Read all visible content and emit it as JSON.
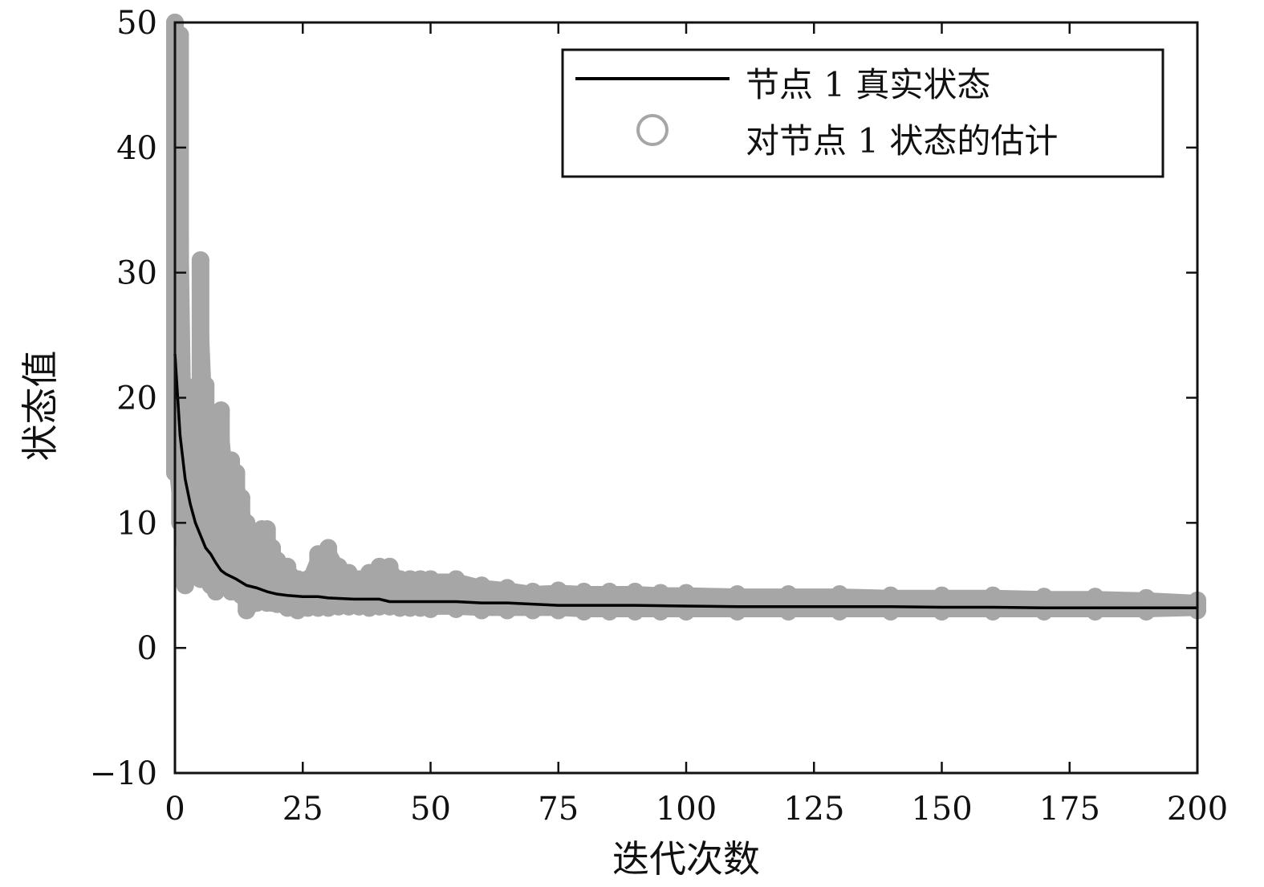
{
  "chart_data": {
    "type": "line",
    "title": "",
    "xlabel": "迭代次数",
    "ylabel": "状态值",
    "xlim": [
      0,
      200
    ],
    "ylim": [
      -10,
      50
    ],
    "x_ticks": [
      "0",
      "25",
      "50",
      "75",
      "100",
      "125",
      "150",
      "175",
      "200"
    ],
    "y_ticks": [
      "−10",
      "0",
      "10",
      "20",
      "30",
      "40",
      "50"
    ],
    "grid": false,
    "legend_position": "top-right",
    "colors": {
      "true_state": "#000000",
      "estimate": "#a6a6a6"
    },
    "series": [
      {
        "name": "节点 1 真实状态",
        "style": "line",
        "x": [
          0,
          1,
          2,
          3,
          4,
          5,
          6,
          7,
          8,
          9,
          10,
          12,
          14,
          16,
          18,
          20,
          22,
          25,
          28,
          30,
          35,
          40,
          42,
          45,
          50,
          55,
          60,
          65,
          70,
          75,
          80,
          90,
          100,
          110,
          120,
          130,
          140,
          150,
          160,
          170,
          180,
          190,
          200
        ],
        "y": [
          23.5,
          17,
          13.5,
          11.5,
          10,
          9,
          8,
          7.5,
          6.8,
          6.2,
          5.9,
          5.5,
          5.0,
          4.8,
          4.5,
          4.3,
          4.2,
          4.1,
          4.1,
          4.0,
          3.9,
          3.9,
          3.7,
          3.7,
          3.7,
          3.7,
          3.6,
          3.6,
          3.5,
          3.4,
          3.4,
          3.4,
          3.35,
          3.3,
          3.3,
          3.3,
          3.3,
          3.25,
          3.25,
          3.2,
          3.2,
          3.2,
          3.2
        ]
      },
      {
        "name": "对节点 1 状态的估计",
        "style": "markers",
        "x": [
          0,
          1,
          2,
          3,
          4,
          5,
          6,
          7,
          8,
          9,
          10,
          11,
          12,
          13,
          14,
          15,
          16,
          17,
          18,
          19,
          20,
          22,
          24,
          26,
          28,
          30,
          32,
          34,
          36,
          38,
          40,
          42,
          44,
          46,
          48,
          50,
          55,
          60,
          65,
          70,
          75,
          80,
          85,
          90,
          95,
          100,
          110,
          120,
          130,
          140,
          150,
          160,
          170,
          180,
          190,
          200
        ],
        "y_min": [
          14,
          10,
          5,
          6,
          7,
          5.5,
          6,
          5,
          4.5,
          5,
          5,
          4.5,
          4.5,
          4.2,
          3.0,
          3.5,
          3.6,
          3.8,
          3.6,
          3.6,
          3.5,
          3.2,
          3.0,
          3.2,
          3.2,
          3.2,
          3.3,
          3.3,
          3.3,
          3.2,
          3.3,
          3.3,
          3.2,
          3.2,
          3.2,
          3.1,
          3.1,
          3.0,
          3.0,
          3.0,
          3.0,
          2.9,
          2.9,
          2.9,
          2.9,
          2.9,
          2.9,
          2.9,
          2.9,
          2.9,
          2.9,
          2.9,
          2.9,
          2.9,
          2.9,
          3.0
        ],
        "y_max": [
          50,
          49,
          21,
          20,
          14,
          31,
          21,
          18,
          17,
          19,
          15,
          15,
          14,
          12,
          10,
          9,
          8,
          9.5,
          9.5,
          8,
          7,
          6.5,
          5.5,
          5.5,
          7.5,
          8,
          6.5,
          6.0,
          5.5,
          6.0,
          6.5,
          6.5,
          5.5,
          5.5,
          5.5,
          5.5,
          5.5,
          5.0,
          4.8,
          4.5,
          4.6,
          4.5,
          4.5,
          4.5,
          4.4,
          4.4,
          4.3,
          4.3,
          4.3,
          4.2,
          4.2,
          4.2,
          4.1,
          4.1,
          4.0,
          3.8
        ]
      }
    ]
  }
}
